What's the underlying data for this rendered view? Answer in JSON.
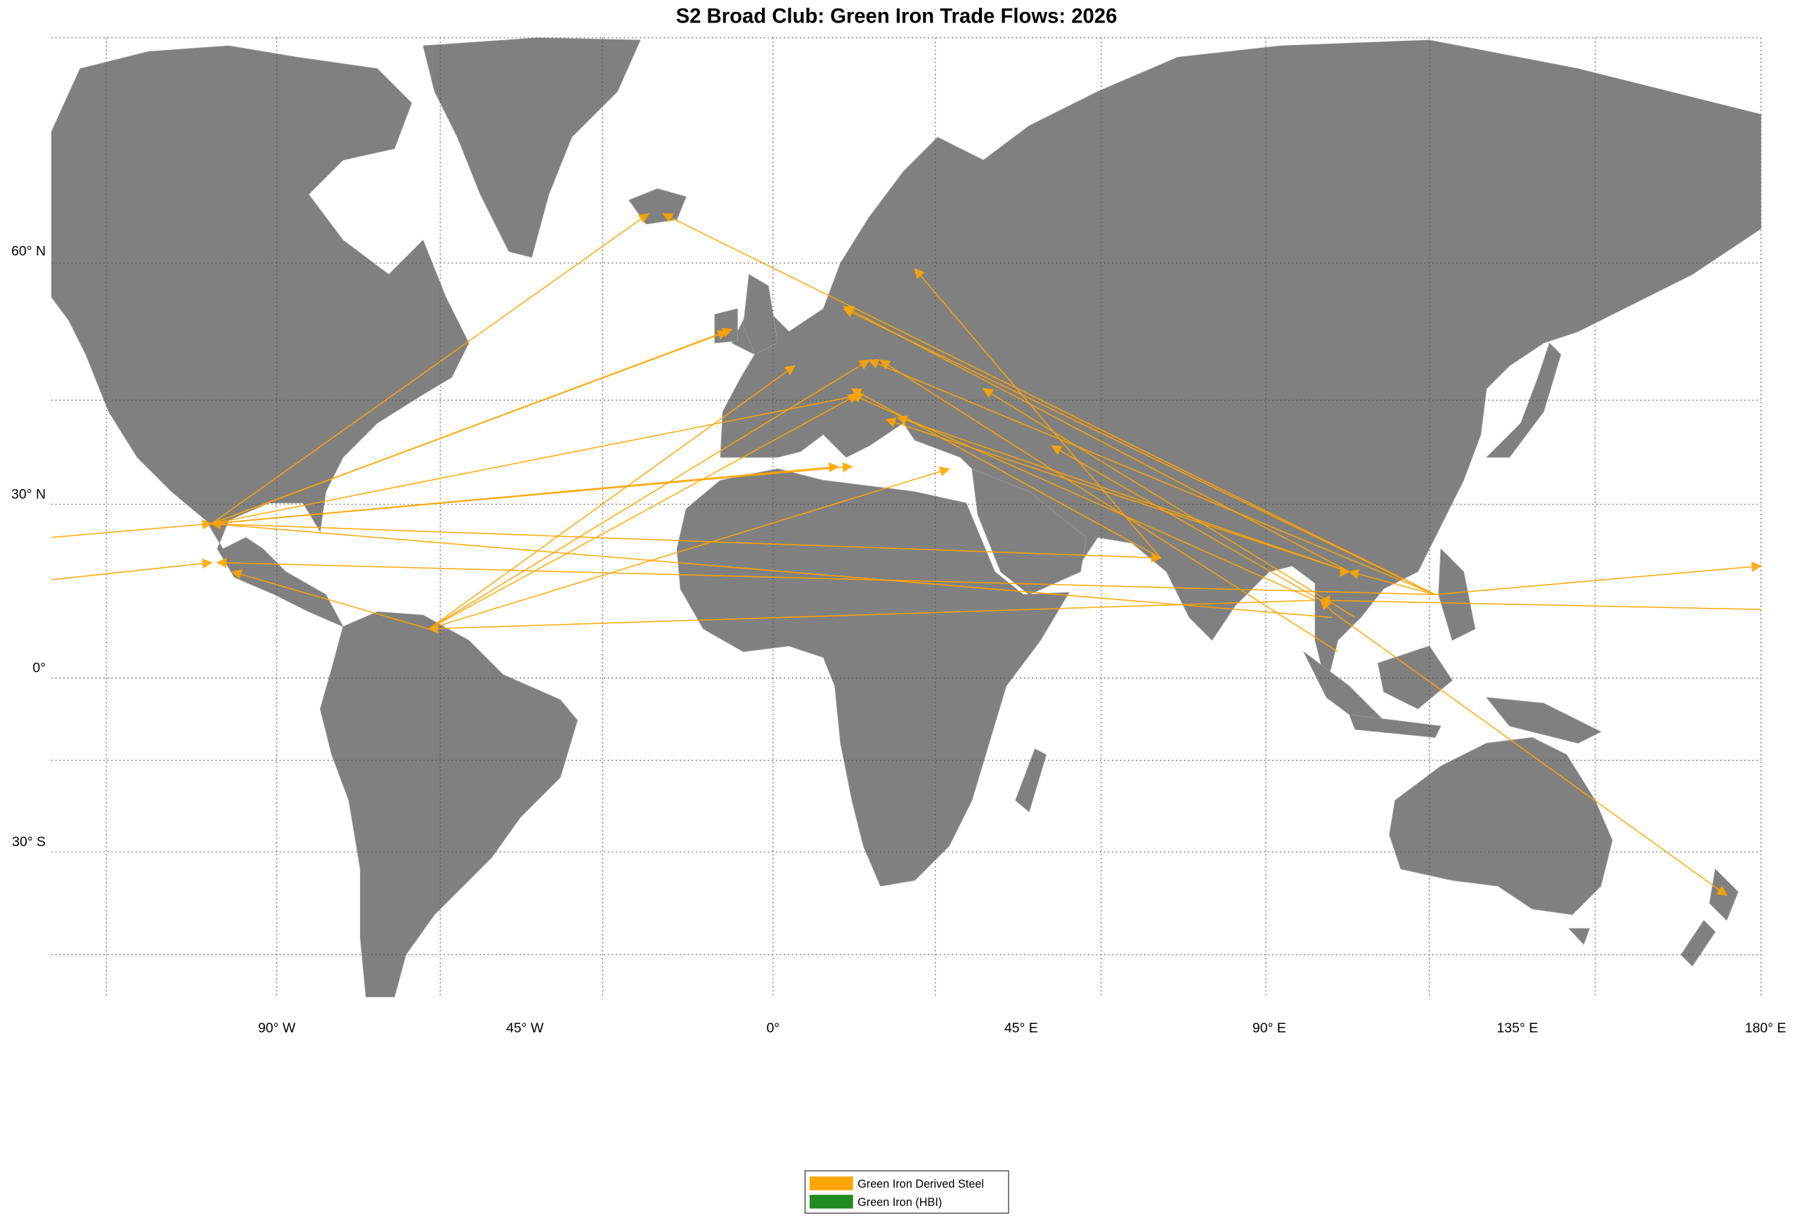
{
  "title": "S2 Broad Club: Green Iron Trade Flows: 2026",
  "map": {
    "lon_ticks": [
      {
        "value": -90,
        "label": "90° W"
      },
      {
        "value": -45,
        "label": "45° W"
      },
      {
        "value": 0,
        "label": "0°"
      },
      {
        "value": 45,
        "label": "45° E"
      },
      {
        "value": 90,
        "label": "90° E"
      },
      {
        "value": 135,
        "label": "135° E"
      },
      {
        "value": 180,
        "label": "180° E"
      }
    ],
    "lat_ticks": [
      {
        "value": 60,
        "label": "60° N"
      },
      {
        "value": 30,
        "label": "30° N"
      },
      {
        "value": 0,
        "label": "0°"
      },
      {
        "value": -30,
        "label": "30° S"
      }
    ]
  },
  "legend": [
    {
      "label": "Green Iron Derived Steel",
      "color": "#FFA500"
    },
    {
      "label": "Green Iron (HBI)",
      "color": "#228B22"
    }
  ]
}
